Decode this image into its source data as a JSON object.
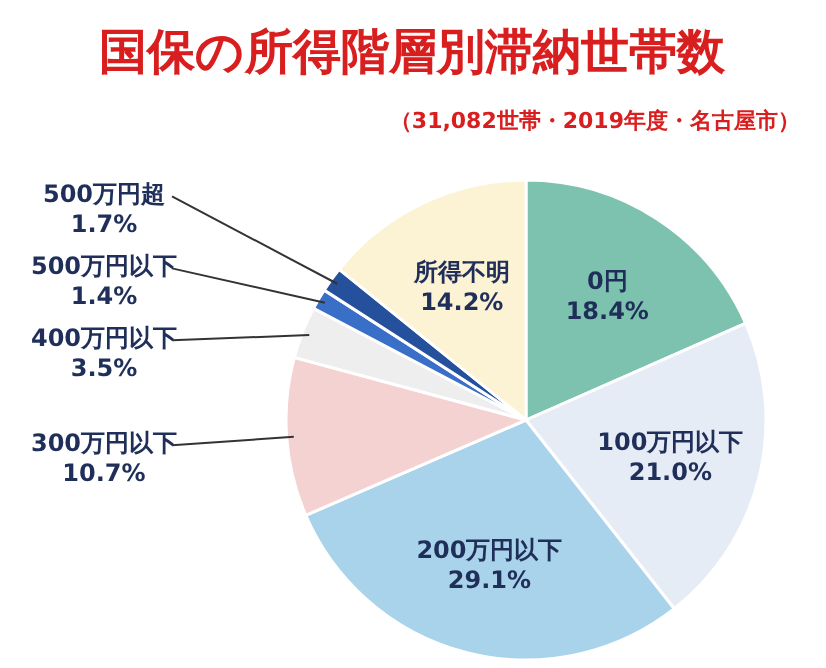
{
  "chart_data": {
    "type": "pie",
    "title": "国保の所得階層別滞納世帯数",
    "subtitle": "（31,082世帯・2019年度・名古屋市）",
    "categories": [
      "0円",
      "100万円以下",
      "200万円以下",
      "300万円以下",
      "400万円以下",
      "500万円以下",
      "500万円超",
      "所得不明"
    ],
    "values": [
      18.4,
      21.0,
      29.1,
      10.7,
      3.5,
      1.4,
      1.7,
      14.2
    ],
    "colors": [
      "#7cc2ae",
      "#e6ecf6",
      "#a9d3ea",
      "#f5d2d2",
      "#eeeeee",
      "#3a6fc8",
      "#24509c",
      "#fcf2d4"
    ],
    "value_labels": [
      "18.4%",
      "21.0%",
      "29.1%",
      "10.7%",
      "3.5%",
      "1.4%",
      "1.7%",
      "14.2%"
    ]
  }
}
